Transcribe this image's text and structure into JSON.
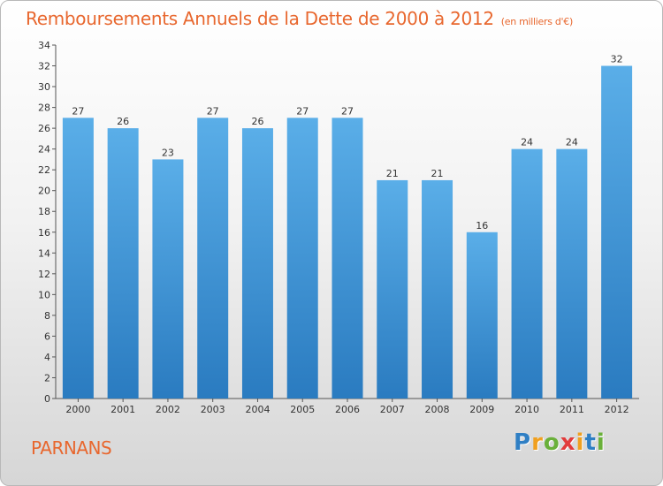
{
  "title": "Remboursements Annuels de la Dette de 2000 à 2012",
  "subtitle": "(en milliers d'€)",
  "commune": "PARNANS",
  "logo": {
    "letters": [
      "P",
      "r",
      "o",
      "x",
      "i",
      "t",
      "i"
    ],
    "colors": [
      "#2f7fc4",
      "#f0a020",
      "#6ab03a",
      "#e23b3b",
      "#f0a020",
      "#2f7fc4",
      "#6ab03a"
    ]
  },
  "colors": {
    "bar_top": "#5aaee8",
    "bar_bottom": "#2a7bc0",
    "title": "#e8672e"
  },
  "chart_data": {
    "type": "bar",
    "title": "Remboursements Annuels de la Dette de 2000 à 2012",
    "unit": "(en milliers d'€)",
    "categories": [
      "2000",
      "2001",
      "2002",
      "2003",
      "2004",
      "2005",
      "2006",
      "2007",
      "2008",
      "2009",
      "2010",
      "2011",
      "2012"
    ],
    "values": [
      27,
      26,
      23,
      27,
      26,
      27,
      27,
      21,
      21,
      16,
      24,
      24,
      32
    ],
    "ylim": [
      0,
      34
    ],
    "yticks": [
      0,
      2,
      4,
      6,
      8,
      10,
      12,
      14,
      16,
      18,
      20,
      22,
      24,
      26,
      28,
      30,
      32,
      34
    ],
    "grid": false,
    "xlabel": "",
    "ylabel": ""
  }
}
